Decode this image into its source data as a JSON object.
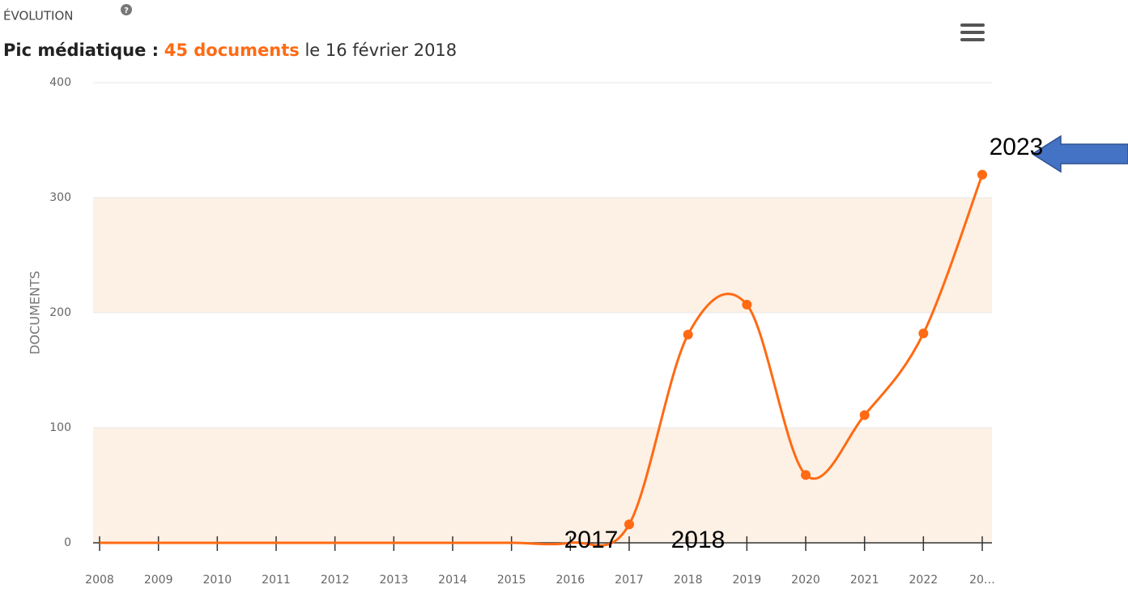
{
  "chart_data": {
    "type": "line",
    "title": "ÉVOLUTION",
    "subtitle": {
      "prefix": "Pic médiatique :",
      "highlight": "45 documents",
      "suffix": "le 16 février 2018"
    },
    "y_label": "DOCUMENTS",
    "categories": [
      "2008",
      "2009",
      "2010",
      "2011",
      "2012",
      "2013",
      "2014",
      "2015",
      "2016",
      "2017",
      "2018",
      "2019",
      "2020",
      "2021",
      "2022",
      "20…"
    ],
    "series": [
      {
        "name": "Documents",
        "color": "#ff6a13",
        "values": [
          0,
          0,
          0,
          0,
          0,
          0,
          0,
          0,
          0,
          16,
          181,
          207,
          59,
          111,
          182,
          320
        ]
      }
    ],
    "ylim": [
      0,
      400
    ],
    "yticks": [
      0,
      100,
      200,
      300,
      400
    ],
    "grid": true,
    "plot_bands": [
      {
        "from": 0,
        "to": 100
      },
      {
        "from": 200,
        "to": 300
      }
    ],
    "band_color": "#fdf0e4",
    "annotations": [
      "2017",
      "2018",
      "2023"
    ]
  }
}
